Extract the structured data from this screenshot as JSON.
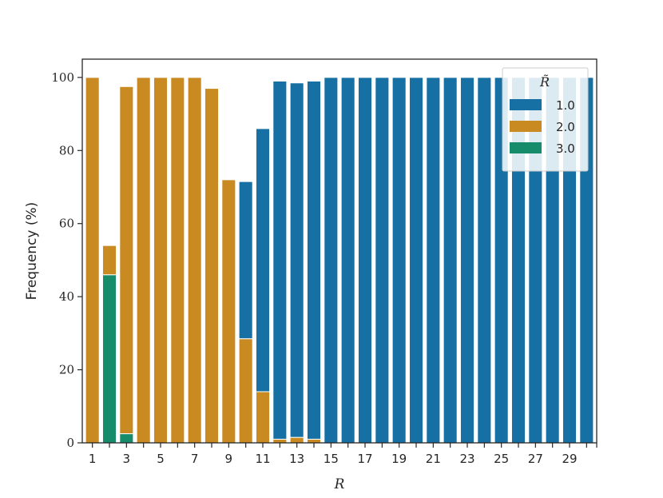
{
  "chart_data": {
    "type": "bar",
    "stacked": true,
    "xlabel": "R",
    "ylabel": "Frequency (%)",
    "ylim": [
      0,
      105
    ],
    "yticks": [
      0,
      20,
      40,
      60,
      80,
      100
    ],
    "x": [
      1,
      2,
      3,
      4,
      5,
      6,
      7,
      8,
      9,
      10,
      11,
      12,
      13,
      14,
      15,
      16,
      17,
      18,
      19,
      20,
      21,
      22,
      23,
      24,
      25,
      26,
      27,
      28,
      29,
      30
    ],
    "xtick_labels": [
      "1",
      "3",
      "5",
      "7",
      "9",
      "11",
      "13",
      "15",
      "17",
      "19",
      "21",
      "23",
      "25",
      "27",
      "29"
    ],
    "legend": {
      "title": "R̃",
      "position": "top-right"
    },
    "series": [
      {
        "name": "3.0",
        "color": "#168c6b",
        "values": [
          0,
          46,
          2.5,
          0,
          0,
          0,
          0,
          0,
          0,
          0,
          0,
          0,
          0,
          0,
          0,
          0,
          0,
          0,
          0,
          0,
          0,
          0,
          0,
          0,
          0,
          0,
          0,
          0,
          0,
          0
        ]
      },
      {
        "name": "2.0",
        "color": "#c88a21",
        "values": [
          100,
          8,
          95,
          100,
          100,
          100,
          100,
          97,
          72,
          28.5,
          14,
          1,
          1.5,
          1,
          0,
          0,
          0,
          0,
          0,
          0,
          0,
          0,
          0,
          0,
          0,
          0,
          0,
          0,
          0,
          0
        ]
      },
      {
        "name": "1.0",
        "color": "#1670a3",
        "values": [
          0,
          0,
          0,
          0,
          0,
          0,
          0,
          0,
          0,
          43,
          72,
          98,
          97,
          98,
          100,
          100,
          100,
          100,
          100,
          100,
          100,
          100,
          100,
          100,
          100,
          100,
          100,
          100,
          100,
          100
        ]
      }
    ]
  }
}
